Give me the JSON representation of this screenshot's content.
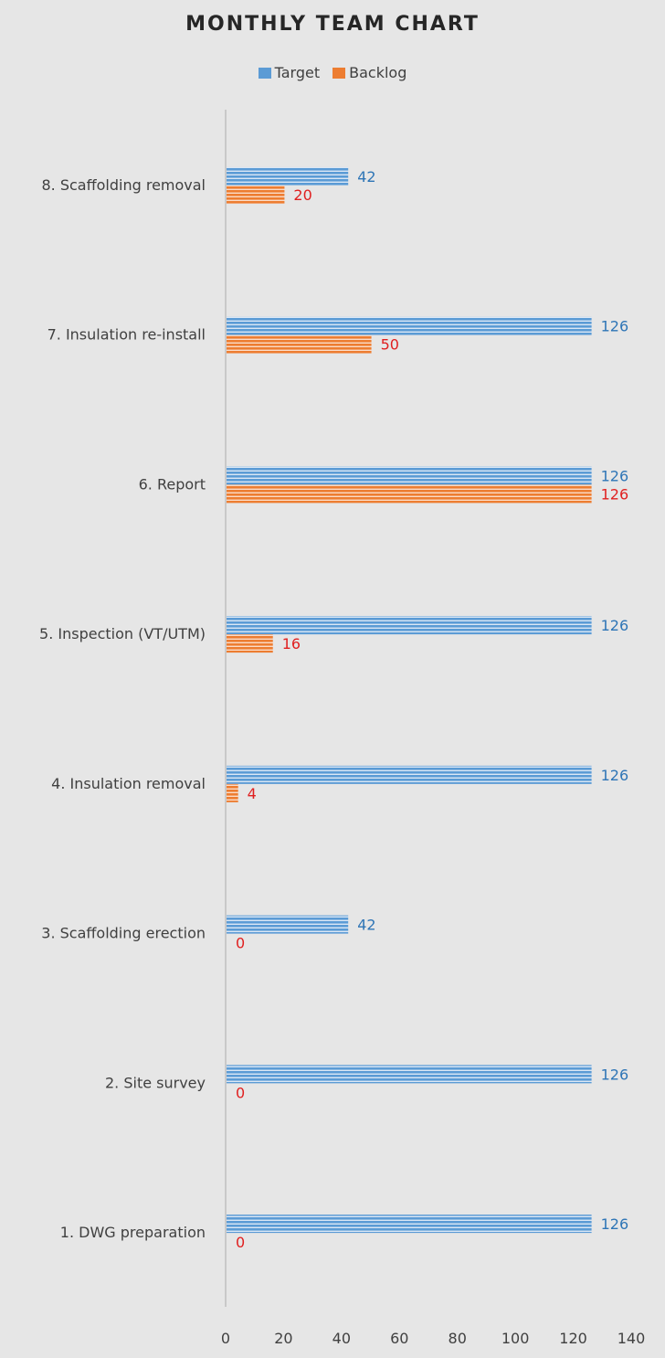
{
  "chart_data": {
    "type": "bar",
    "orientation": "horizontal",
    "title": "MONTHLY TEAM CHART",
    "categories": [
      "8. Scaffolding removal",
      "7. Insulation re-install",
      "6. Report",
      "5. Inspection (VT/UTM)",
      "4. Insulation removal",
      "3. Scaffolding erection",
      "2. Site survey",
      "1. DWG preparation"
    ],
    "series": [
      {
        "name": "Target",
        "values": [
          42,
          126,
          126,
          126,
          126,
          42,
          126,
          126
        ],
        "color": "#5b9bd5",
        "label_color": "#2e75b6"
      },
      {
        "name": "Backlog",
        "values": [
          20,
          50,
          126,
          16,
          4,
          0,
          0,
          0
        ],
        "color": "#ed7d31",
        "label_color": "#e02020"
      }
    ],
    "xlim": [
      0,
      140
    ],
    "xticks": [
      0,
      20,
      40,
      60,
      80,
      100,
      120,
      140
    ],
    "grid": false,
    "legend_position": "top",
    "xlabel": "",
    "ylabel": ""
  }
}
